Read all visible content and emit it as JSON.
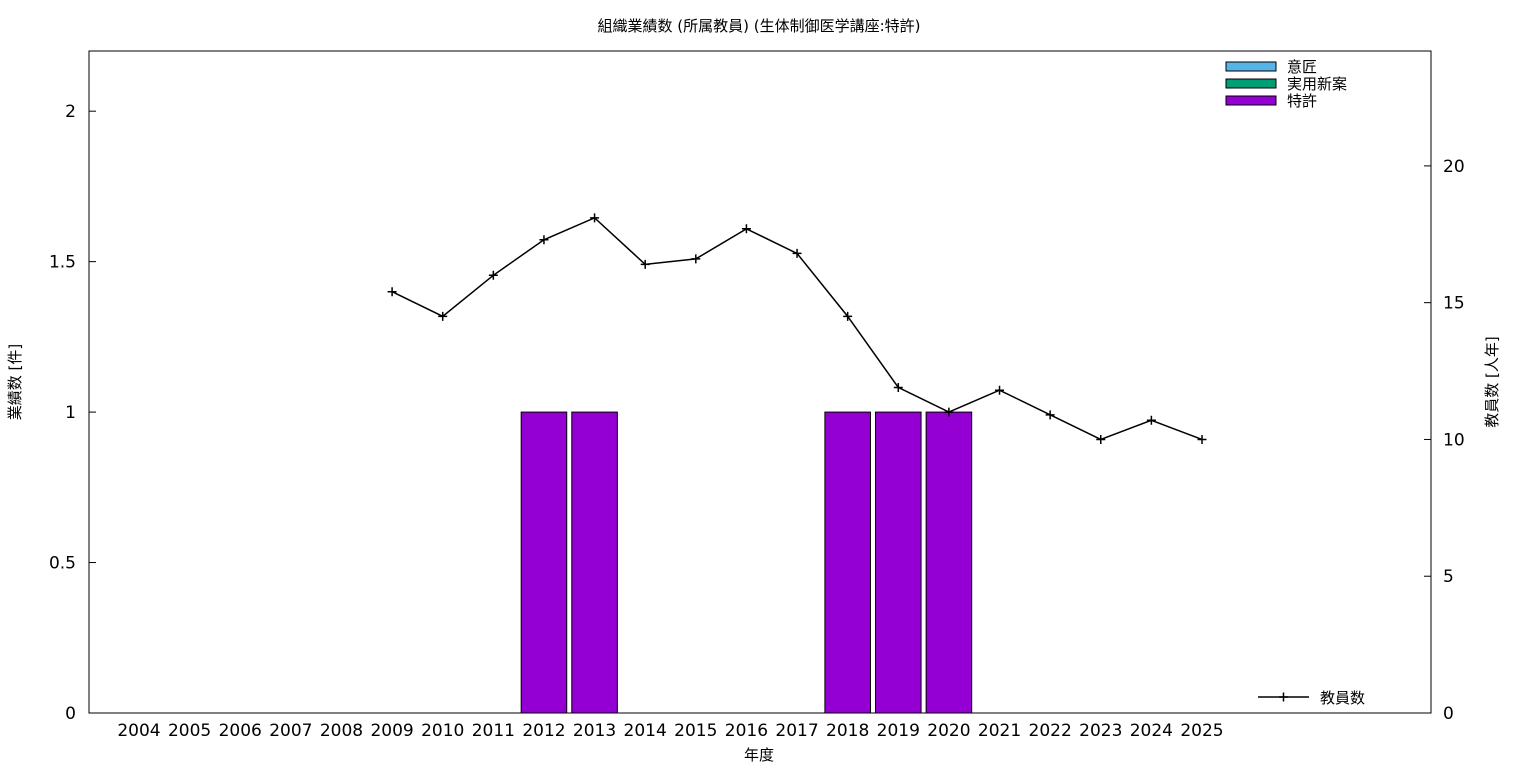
{
  "chart_data": {
    "type": "bar",
    "title": "組織業績数 (所属教員) (生体制御医学講座:特許)",
    "xlabel": "年度",
    "ylabel": "業績数 [件]",
    "y2label": "教員数 [人年]",
    "categories": [
      "2004",
      "2005",
      "2006",
      "2007",
      "2008",
      "2009",
      "2010",
      "2011",
      "2012",
      "2013",
      "2014",
      "2015",
      "2016",
      "2017",
      "2018",
      "2019",
      "2020",
      "2021",
      "2022",
      "2023",
      "2024",
      "2025"
    ],
    "ylim": [
      0,
      2.2
    ],
    "y2lim": [
      0,
      24.2
    ],
    "yticks": [
      0,
      0.5,
      1,
      1.5,
      2
    ],
    "ytick_labels": [
      "0",
      "0.5",
      "1",
      "1.5",
      "2"
    ],
    "y2ticks": [
      0,
      5,
      10,
      15,
      20
    ],
    "y2tick_labels": [
      "0",
      "5",
      "10",
      "15",
      "20"
    ],
    "grid": false,
    "legend_position": "top-right",
    "line_legend_position": "bottom-right",
    "series": [
      {
        "name": "意匠",
        "color": "#56b4e9",
        "axis": "left",
        "kind": "bar",
        "values": [
          0,
          0,
          0,
          0,
          0,
          0,
          0,
          0,
          0,
          0,
          0,
          0,
          0,
          0,
          0,
          0,
          0,
          0,
          0,
          0,
          0,
          0
        ]
      },
      {
        "name": "実用新案",
        "color": "#009e73",
        "axis": "left",
        "kind": "bar",
        "values": [
          0,
          0,
          0,
          0,
          0,
          0,
          0,
          0,
          0,
          0,
          0,
          0,
          0,
          0,
          0,
          0,
          0,
          0,
          0,
          0,
          0,
          0
        ]
      },
      {
        "name": "特許",
        "color": "#9400d3",
        "axis": "left",
        "kind": "bar",
        "values": [
          0,
          0,
          0,
          0,
          0,
          0,
          0,
          0,
          1,
          1,
          0,
          0,
          0,
          0,
          1,
          1,
          1,
          0,
          0,
          0,
          0,
          0
        ]
      },
      {
        "name": "教員数",
        "color": "#000000",
        "axis": "right",
        "kind": "line",
        "values": [
          null,
          null,
          null,
          null,
          null,
          15.4,
          14.5,
          16.0,
          17.3,
          18.1,
          16.4,
          16.6,
          17.7,
          16.8,
          14.5,
          11.9,
          11.0,
          11.8,
          10.9,
          10.0,
          10.7,
          10.0
        ]
      }
    ]
  }
}
